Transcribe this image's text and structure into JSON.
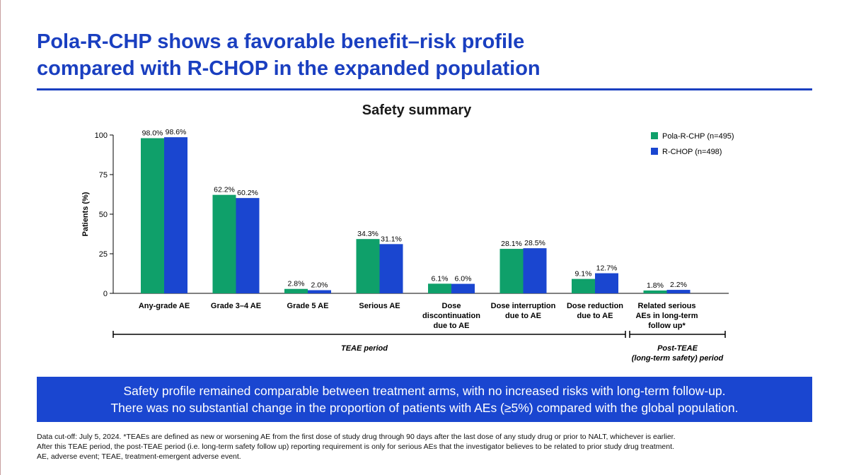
{
  "slide": {
    "title_line1": "Pola-R-CHP shows a favorable benefit–risk profile",
    "title_line2": "compared with R-CHOP in the expanded population"
  },
  "chart_data": {
    "type": "bar",
    "title": "Safety summary",
    "ylabel": "Patients (%)",
    "ylim": [
      0,
      100
    ],
    "yticks": [
      0,
      25,
      50,
      75,
      100
    ],
    "grid": false,
    "legend_position": "top-right",
    "categories": [
      [
        "Any-grade AE"
      ],
      [
        "Grade 3–4 AE"
      ],
      [
        "Grade 5 AE"
      ],
      [
        "Serious AE"
      ],
      [
        "Dose",
        "discontinuation",
        "due to AE"
      ],
      [
        "Dose interruption",
        "due to AE"
      ],
      [
        "Dose reduction",
        "due to AE"
      ],
      [
        "Related serious",
        "AEs in long-term",
        "follow up*"
      ]
    ],
    "series": [
      {
        "name": "Pola-R-CHP (n=495)",
        "color": "#0fa06a",
        "values": [
          98.0,
          62.2,
          2.8,
          34.3,
          6.1,
          28.1,
          9.1,
          1.8
        ],
        "labels": [
          "98.0%",
          "62.2%",
          "2.8%",
          "34.3%",
          "6.1%",
          "28.1%",
          "9.1%",
          "1.8%"
        ]
      },
      {
        "name": "R-CHOP (n=498)",
        "color": "#1a46d0",
        "values": [
          98.6,
          60.2,
          2.0,
          31.1,
          6.0,
          28.5,
          12.7,
          2.2
        ],
        "labels": [
          "98.6%",
          "60.2%",
          "2.0%",
          "31.1%",
          "6.0%",
          "28.5%",
          "12.7%",
          "2.2%"
        ]
      }
    ],
    "periods": [
      {
        "label_lines": [
          "TEAE period"
        ],
        "from_category": 0,
        "to_category": 6
      },
      {
        "label_lines": [
          "Post-TEAE",
          "(long-term safety) period"
        ],
        "from_category": 7,
        "to_category": 7
      }
    ]
  },
  "callout": {
    "line1": "Safety profile remained comparable between treatment arms, with no increased risks with long-term follow-up.",
    "line2": "There was no substantial change in the proportion of patients with AEs (≥5%) compared with the global population."
  },
  "footnote": {
    "line1": "Data cut-off: July 5, 2024. *TEAEs are defined as new or worsening AE from the first dose of study drug through 90 days after the last dose of any study drug or prior to NALT, whichever is earlier.",
    "line2": "After this TEAE period, the post-TEAE period (i.e. long-term safety follow up) reporting requirement is only for serious AEs that the investigator believes to be related to prior study drug treatment.",
    "line3": "AE, adverse event; TEAE, treatment-emergent adverse event."
  }
}
